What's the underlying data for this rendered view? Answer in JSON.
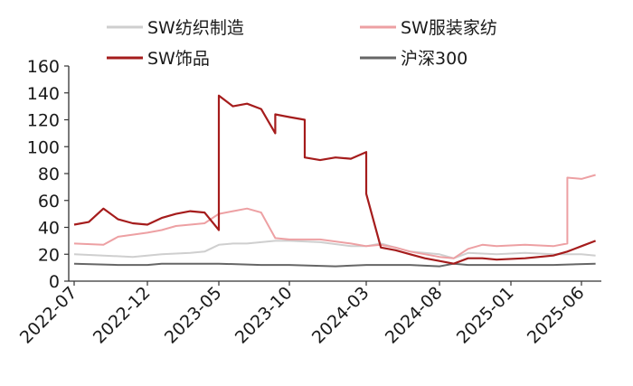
{
  "chart_data": {
    "type": "line",
    "title": "",
    "xlabel": "",
    "ylabel": "",
    "ylim": [
      0,
      160
    ],
    "yticks": [
      "0",
      "20",
      "40",
      "60",
      "80",
      "100",
      "120",
      "140",
      "160"
    ],
    "xticks": [
      "2022-07",
      "2022-12",
      "2023-05",
      "2023-10",
      "2024-03",
      "2024-08",
      "2025-01",
      "2025-06"
    ],
    "xrange": [
      "2022-07",
      "2025-07"
    ],
    "grid": false,
    "legend_position": "top",
    "series": [
      {
        "name": "SW纺织制造",
        "color": "#cfcfcf",
        "points": [
          [
            "2022-07",
            20
          ],
          [
            "2022-09",
            19
          ],
          [
            "2022-11",
            18
          ],
          [
            "2023-01",
            20
          ],
          [
            "2023-03",
            21
          ],
          [
            "2023-04",
            22
          ],
          [
            "2023-05",
            27
          ],
          [
            "2023-06",
            28
          ],
          [
            "2023-07",
            28
          ],
          [
            "2023-08",
            29
          ],
          [
            "2023-09",
            30
          ],
          [
            "2023-10",
            30
          ],
          [
            "2023-12",
            29
          ],
          [
            "2024-02",
            26
          ],
          [
            "2024-03",
            26
          ],
          [
            "2024-04",
            28
          ],
          [
            "2024-05",
            25
          ],
          [
            "2024-06",
            22
          ],
          [
            "2024-08",
            20
          ],
          [
            "2024-09",
            17
          ],
          [
            "2024-10",
            21
          ],
          [
            "2024-12",
            20
          ],
          [
            "2025-02",
            21
          ],
          [
            "2025-04",
            20
          ],
          [
            "2025-06",
            20
          ],
          [
            "2025-07",
            19
          ]
        ]
      },
      {
        "name": "SW服装家纺",
        "color": "#eda0a3",
        "points": [
          [
            "2022-07",
            28
          ],
          [
            "2022-09",
            27
          ],
          [
            "2022-10",
            33
          ],
          [
            "2022-12",
            36
          ],
          [
            "2023-01",
            38
          ],
          [
            "2023-02",
            41
          ],
          [
            "2023-04",
            43
          ],
          [
            "2023-05",
            50
          ],
          [
            "2023-06",
            52
          ],
          [
            "2023-07",
            54
          ],
          [
            "2023-08",
            51
          ],
          [
            "2023-09",
            32
          ],
          [
            "2023-10",
            31
          ],
          [
            "2023-12",
            31
          ],
          [
            "2024-02",
            28
          ],
          [
            "2024-03",
            26
          ],
          [
            "2024-04",
            27
          ],
          [
            "2024-05",
            25
          ],
          [
            "2024-06",
            22
          ],
          [
            "2024-08",
            18
          ],
          [
            "2024-09",
            17
          ],
          [
            "2024-10",
            24
          ],
          [
            "2024-11",
            27
          ],
          [
            "2024-12",
            26
          ],
          [
            "2025-02",
            27
          ],
          [
            "2025-04",
            26
          ],
          [
            "2025-05",
            28
          ],
          [
            "2025-05",
            77
          ],
          [
            "2025-06",
            76
          ],
          [
            "2025-07",
            79
          ]
        ]
      },
      {
        "name": "SW饰品",
        "color": "#a51c1c",
        "points": [
          [
            "2022-07",
            42
          ],
          [
            "2022-08",
            44
          ],
          [
            "2022-09",
            54
          ],
          [
            "2022-10",
            46
          ],
          [
            "2022-11",
            43
          ],
          [
            "2022-12",
            42
          ],
          [
            "2023-01",
            47
          ],
          [
            "2023-02",
            50
          ],
          [
            "2023-03",
            52
          ],
          [
            "2023-04",
            51
          ],
          [
            "2023-05",
            38
          ],
          [
            "2023-05",
            138
          ],
          [
            "2023-06",
            130
          ],
          [
            "2023-07",
            132
          ],
          [
            "2023-08",
            128
          ],
          [
            "2023-09",
            110
          ],
          [
            "2023-09",
            124
          ],
          [
            "2023-10",
            122
          ],
          [
            "2023-11",
            120
          ],
          [
            "2023-11",
            92
          ],
          [
            "2023-12",
            90
          ],
          [
            "2024-01",
            92
          ],
          [
            "2024-02",
            91
          ],
          [
            "2024-03",
            96
          ],
          [
            "2024-03",
            65
          ],
          [
            "2024-04",
            25
          ],
          [
            "2024-05",
            23
          ],
          [
            "2024-06",
            20
          ],
          [
            "2024-07",
            17
          ],
          [
            "2024-08",
            15
          ],
          [
            "2024-09",
            13
          ],
          [
            "2024-10",
            17
          ],
          [
            "2024-11",
            17
          ],
          [
            "2024-12",
            16
          ],
          [
            "2025-02",
            17
          ],
          [
            "2025-04",
            19
          ],
          [
            "2025-05",
            22
          ],
          [
            "2025-06",
            26
          ],
          [
            "2025-07",
            30
          ]
        ]
      },
      {
        "name": "沪深300",
        "color": "#666666",
        "points": [
          [
            "2022-07",
            13
          ],
          [
            "2022-10",
            12
          ],
          [
            "2022-12",
            12
          ],
          [
            "2023-01",
            13
          ],
          [
            "2023-05",
            13
          ],
          [
            "2023-08",
            12
          ],
          [
            "2023-10",
            12
          ],
          [
            "2024-01",
            11
          ],
          [
            "2024-03",
            12
          ],
          [
            "2024-06",
            12
          ],
          [
            "2024-08",
            11
          ],
          [
            "2024-09",
            13
          ],
          [
            "2024-10",
            12
          ],
          [
            "2025-01",
            12
          ],
          [
            "2025-04",
            12
          ],
          [
            "2025-07",
            13
          ]
        ]
      }
    ]
  }
}
